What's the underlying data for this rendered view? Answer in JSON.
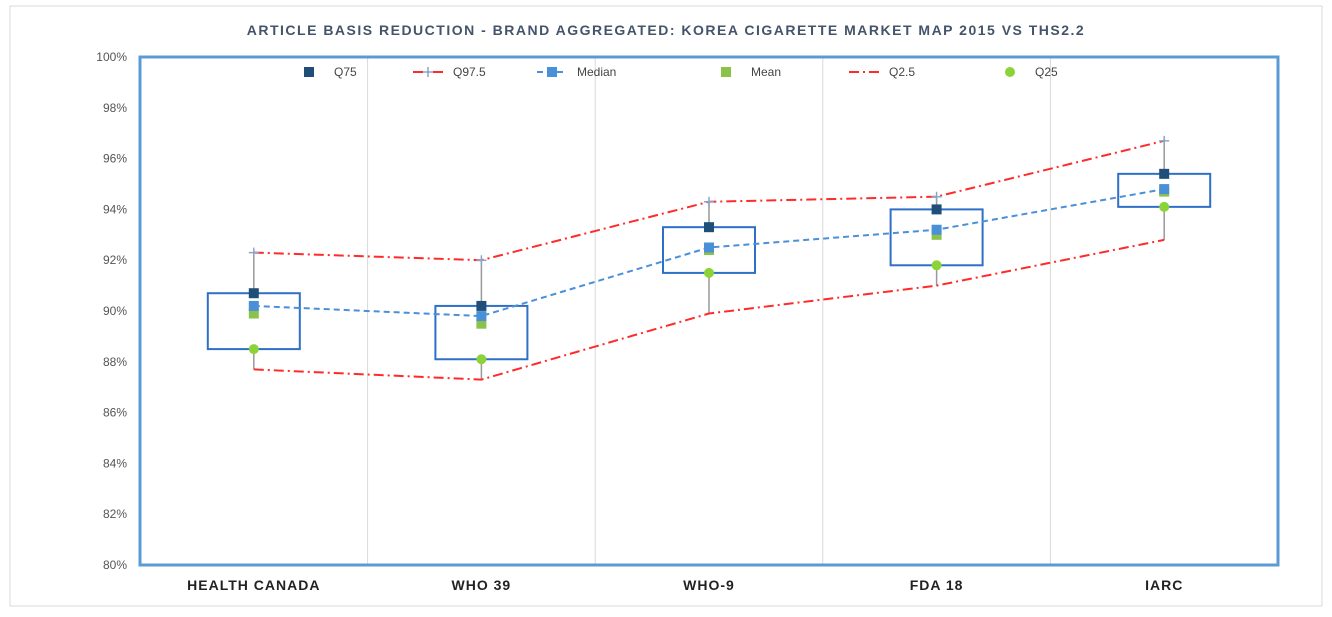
{
  "chart_data": {
    "type": "boxplot",
    "title": "ARTICLE BASIS REDUCTION - BRAND AGGREGATED: KOREA CIGARETTE MARKET MAP 2015 VS THS2.2",
    "categories": [
      "HEALTH CANADA",
      "WHO 39",
      "WHO-9",
      "FDA 18",
      "IARC"
    ],
    "ylim": [
      0.8,
      1.0
    ],
    "yticks": [
      0.8,
      0.82,
      0.84,
      0.86,
      0.88,
      0.9,
      0.92,
      0.94,
      0.96,
      0.98,
      1.0
    ],
    "ytick_labels": [
      "80%",
      "82%",
      "84%",
      "86%",
      "88%",
      "90%",
      "92%",
      "94%",
      "96%",
      "98%",
      "100%"
    ],
    "grid": "vertical",
    "legend_position": "top",
    "series": [
      {
        "name": "Q75",
        "values": [
          0.907,
          0.902,
          0.933,
          0.94,
          0.954
        ],
        "color": "#1f4e79",
        "marker": "square"
      },
      {
        "name": "Q97.5",
        "values": [
          0.923,
          0.92,
          0.943,
          0.945,
          0.967
        ],
        "color": "#ff2a2a",
        "line": "dashdot",
        "marker": "plus"
      },
      {
        "name": "Median",
        "values": [
          0.902,
          0.898,
          0.925,
          0.932,
          0.948
        ],
        "color": "#4a90d9",
        "line": "dashed",
        "marker": "square"
      },
      {
        "name": "Mean",
        "values": [
          0.899,
          0.895,
          0.924,
          0.93,
          0.947
        ],
        "color": "#8bc34a",
        "marker": "square"
      },
      {
        "name": "Q2.5",
        "values": [
          0.877,
          0.873,
          0.899,
          0.91,
          0.928
        ],
        "color": "#ff2a2a",
        "line": "dashdot"
      },
      {
        "name": "Q25",
        "values": [
          0.885,
          0.881,
          0.915,
          0.918,
          0.941
        ],
        "color": "#8bd337",
        "marker": "circle"
      }
    ],
    "box_color": "#2e6fc7",
    "whisker_color": "#999999"
  }
}
